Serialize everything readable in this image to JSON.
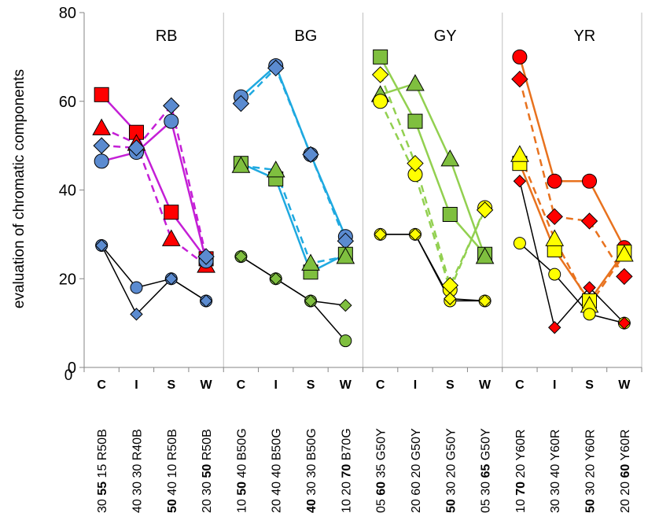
{
  "chart_data": {
    "type": "line",
    "ylabel": "evaluation of chromatic components",
    "ylim": [
      0,
      80
    ],
    "yticks": [
      0,
      20,
      40,
      60,
      80
    ],
    "grid": "vertical group separators",
    "x_origin_label": "0",
    "groups": [
      "RB",
      "BG",
      "GY",
      "YR"
    ],
    "category_letters": [
      "C",
      "I",
      "S",
      "W",
      "C",
      "I",
      "S",
      "W",
      "C",
      "I",
      "S",
      "W",
      "C",
      "I",
      "S",
      "W"
    ],
    "category_labels": [
      {
        "pre": "30 ",
        "bold": "55",
        "post": " 15 R50B"
      },
      {
        "pre": "40 30 30 R40B",
        "bold": "",
        "post": ""
      },
      {
        "pre": "",
        "bold": "50",
        "post": " 40 10 R50B"
      },
      {
        "pre": "20 30 ",
        "bold": "50",
        "post": " R50B"
      },
      {
        "pre": "10 ",
        "bold": "50",
        "post": " 40 B50G"
      },
      {
        "pre": "20 40 40 B50G",
        "bold": "",
        "post": ""
      },
      {
        "pre": "",
        "bold": "40",
        "post": " 30 30 B50G"
      },
      {
        "pre": "10 20 ",
        "bold": "70",
        "post": " B70G"
      },
      {
        "pre": "05 ",
        "bold": "60",
        "post": " 35 G50Y"
      },
      {
        "pre": "20 60 20 G50Y",
        "bold": "",
        "post": ""
      },
      {
        "pre": "",
        "bold": "50",
        "post": " 30 20 G50Y"
      },
      {
        "pre": "05 30 ",
        "bold": "65",
        "post": " G50Y"
      },
      {
        "pre": "10 ",
        "bold": "70",
        "post": " 20 Y60R"
      },
      {
        "pre": "30 30 40 Y60R",
        "bold": "",
        "post": ""
      },
      {
        "pre": "",
        "bold": "50",
        "post": " 30 20 Y60R"
      },
      {
        "pre": "20 20 ",
        "bold": "60",
        "post": " Y60R"
      }
    ],
    "colors": {
      "RB": "#c41fd6",
      "BG": "#1fa9e0",
      "GY": "#92d050",
      "YR": "#e8721e",
      "black": "#000000",
      "red": "#ff0000",
      "blue": "#5b8bd0",
      "green": "#7fbf3f",
      "yellow": "#ffff00",
      "cyan": "#1fa9e0"
    },
    "series": [
      {
        "marker": "square",
        "color": "red",
        "line": "solid",
        "lineColor": "RB",
        "x": [
          0,
          1,
          2,
          3
        ],
        "y": [
          61.5,
          53,
          35,
          24.5
        ]
      },
      {
        "marker": "triangle",
        "color": "red",
        "line": "dashed",
        "lineColor": "RB",
        "x": [
          0,
          1,
          2,
          3
        ],
        "y": [
          54,
          50.5,
          29,
          23
        ]
      },
      {
        "marker": "circle",
        "color": "blue",
        "line": "solid",
        "lineColor": "RB",
        "x": [
          0,
          1,
          2,
          3
        ],
        "y": [
          46.5,
          48.5,
          55.5,
          24
        ]
      },
      {
        "marker": "diamond",
        "color": "blue",
        "line": "dashed",
        "lineColor": "RB",
        "x": [
          0,
          1,
          2,
          3
        ],
        "y": [
          50,
          49.5,
          59,
          25
        ]
      },
      {
        "marker": "circle",
        "color": "blue",
        "line": "solid",
        "lineColor": "black",
        "x": [
          0,
          1,
          2,
          3
        ],
        "y": [
          27.5,
          18,
          20,
          15
        ]
      },
      {
        "marker": "diamond",
        "color": "blue",
        "line": "solid",
        "lineColor": "black",
        "x": [
          0,
          1,
          2,
          3
        ],
        "y": [
          27.5,
          12,
          20,
          15
        ]
      },
      {
        "marker": "circle",
        "color": "blue",
        "line": "solid",
        "lineColor": "BG",
        "x": [
          4,
          5,
          6,
          7
        ],
        "y": [
          61,
          68,
          48,
          29.5
        ]
      },
      {
        "marker": "diamond",
        "color": "blue",
        "line": "dashed",
        "lineColor": "BG",
        "x": [
          4,
          5,
          6,
          7
        ],
        "y": [
          59.5,
          67.5,
          48,
          28.5
        ]
      },
      {
        "marker": "square",
        "color": "green",
        "line": "solid",
        "lineColor": "BG",
        "x": [
          4,
          5,
          6,
          7
        ],
        "y": [
          46,
          42.5,
          21.5,
          25.5
        ]
      },
      {
        "marker": "triangle",
        "color": "green",
        "line": "dashed",
        "lineColor": "BG",
        "x": [
          4,
          5,
          6,
          7
        ],
        "y": [
          45.5,
          44.5,
          23.5,
          25
        ]
      },
      {
        "marker": "circle",
        "color": "green",
        "line": "solid",
        "lineColor": "black",
        "x": [
          4,
          5,
          6,
          7
        ],
        "y": [
          25,
          20,
          15,
          6
        ]
      },
      {
        "marker": "diamond",
        "color": "green",
        "line": "solid",
        "lineColor": "black",
        "x": [
          4,
          5,
          6,
          7
        ],
        "y": [
          25,
          20,
          15,
          14
        ]
      },
      {
        "marker": "square",
        "color": "green",
        "line": "solid",
        "lineColor": "GY",
        "x": [
          8,
          9,
          10,
          11
        ],
        "y": [
          70,
          55.5,
          34.5,
          25.5
        ]
      },
      {
        "marker": "triangle",
        "color": "green",
        "line": "solid",
        "lineColor": "GY",
        "x": [
          8,
          9,
          10,
          11
        ],
        "y": [
          61.5,
          64,
          47,
          25
        ]
      },
      {
        "marker": "circle",
        "color": "yellow",
        "line": "dashed",
        "lineColor": "GY",
        "x": [
          8,
          9,
          10,
          11
        ],
        "y": [
          60,
          43.5,
          17.5,
          36
        ]
      },
      {
        "marker": "diamond",
        "color": "yellow",
        "line": "dashed",
        "lineColor": "GY",
        "x": [
          8,
          9,
          10,
          11
        ],
        "y": [
          66,
          46,
          18.5,
          35.5
        ]
      },
      {
        "marker": "circle",
        "color": "yellow",
        "line": "solid",
        "lineColor": "black",
        "x": [
          8,
          9,
          10,
          11
        ],
        "y": [
          30,
          30,
          15,
          15
        ]
      },
      {
        "marker": "diamond",
        "color": "yellow",
        "line": "solid",
        "lineColor": "black",
        "x": [
          8,
          9,
          10,
          11
        ],
        "y": [
          30,
          30,
          15.5,
          15
        ]
      },
      {
        "marker": "circle",
        "color": "red",
        "line": "solid",
        "lineColor": "YR",
        "x": [
          12,
          13,
          14,
          15
        ],
        "y": [
          70,
          42,
          42,
          27
        ]
      },
      {
        "marker": "diamond",
        "color": "red",
        "line": "dashed",
        "lineColor": "YR",
        "x": [
          12,
          13,
          14,
          15
        ],
        "y": [
          65,
          34,
          33,
          20.5
        ]
      },
      {
        "marker": "square",
        "color": "yellow",
        "line": "solid",
        "lineColor": "YR",
        "x": [
          12,
          13,
          14,
          15
        ],
        "y": [
          46,
          26.5,
          15,
          26
        ]
      },
      {
        "marker": "triangle",
        "color": "yellow",
        "line": "dashed",
        "lineColor": "YR",
        "x": [
          12,
          13,
          14,
          15
        ],
        "y": [
          48,
          29,
          14,
          25.5
        ]
      },
      {
        "marker": "circle",
        "color": "yellow",
        "line": "solid",
        "lineColor": "black",
        "x": [
          12,
          13,
          14,
          15
        ],
        "y": [
          28,
          21,
          12,
          10
        ]
      },
      {
        "marker": "diamond",
        "color": "red",
        "line": "solid",
        "lineColor": "black",
        "x": [
          12,
          13,
          14,
          15
        ],
        "y": [
          42,
          9,
          18,
          10
        ]
      }
    ]
  }
}
